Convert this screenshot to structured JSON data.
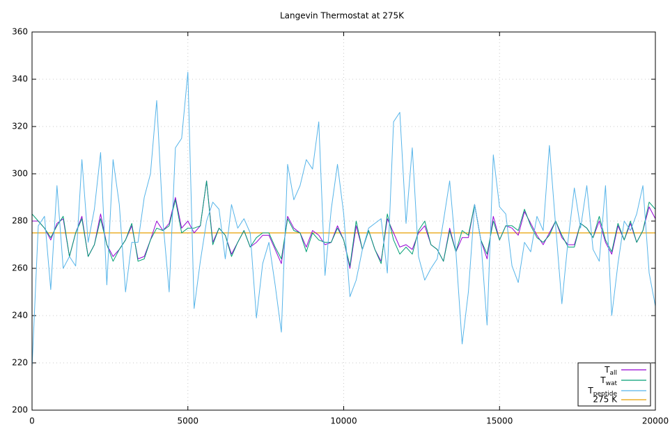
{
  "chart_data": {
    "type": "line",
    "title": "Langevin Thermostat at 275K",
    "x": [
      0,
      200,
      400,
      600,
      800,
      1000,
      1200,
      1400,
      1600,
      1800,
      2000,
      2200,
      2400,
      2600,
      2800,
      3000,
      3200,
      3400,
      3600,
      3800,
      4000,
      4200,
      4400,
      4600,
      4800,
      5000,
      5200,
      5400,
      5600,
      5800,
      6000,
      6200,
      6400,
      6600,
      6800,
      7000,
      7200,
      7400,
      7600,
      7800,
      8000,
      8200,
      8400,
      8600,
      8800,
      9000,
      9200,
      9400,
      9600,
      9800,
      10000,
      10200,
      10400,
      10600,
      10800,
      11000,
      11200,
      11400,
      11600,
      11800,
      12000,
      12200,
      12400,
      12600,
      12800,
      13000,
      13200,
      13400,
      13600,
      13800,
      14000,
      14200,
      14400,
      14600,
      14800,
      15000,
      15200,
      15400,
      15600,
      15800,
      16000,
      16200,
      16400,
      16600,
      16800,
      17000,
      17200,
      17400,
      17600,
      17800,
      18000,
      18200,
      18400,
      18600,
      18800,
      19000,
      19200,
      19400,
      19600,
      19800,
      20000
    ],
    "series": [
      {
        "name": "T",
        "subscript": "all",
        "color": "#9400d3",
        "values": [
          280,
          280,
          277,
          272,
          279,
          281,
          265,
          275,
          282,
          265,
          270,
          283,
          270,
          265,
          268,
          272,
          278,
          264,
          265,
          272,
          280,
          276,
          279,
          290,
          277,
          280,
          275,
          278,
          297,
          271,
          277,
          274,
          266,
          271,
          276,
          269,
          271,
          274,
          274,
          268,
          262,
          282,
          277,
          275,
          269,
          276,
          274,
          270,
          271,
          278,
          272,
          260,
          278,
          268,
          276,
          268,
          263,
          281,
          275,
          269,
          270,
          268,
          275,
          278,
          270,
          268,
          263,
          277,
          267,
          273,
          273,
          287,
          272,
          264,
          282,
          272,
          278,
          277,
          274,
          284,
          279,
          274,
          270,
          275,
          280,
          273,
          270,
          270,
          279,
          277,
          273,
          280,
          271,
          266,
          278,
          272,
          279,
          271,
          276,
          286,
          281
        ]
      },
      {
        "name": "T",
        "subscript": "wat",
        "color": "#009e73",
        "values": [
          283,
          280,
          277,
          273,
          278,
          282,
          265,
          275,
          281,
          265,
          270,
          281,
          270,
          263,
          268,
          272,
          279,
          263,
          264,
          272,
          277,
          276,
          278,
          289,
          275,
          277,
          277,
          278,
          297,
          270,
          277,
          274,
          265,
          271,
          276,
          269,
          273,
          275,
          275,
          269,
          264,
          281,
          276,
          275,
          267,
          275,
          272,
          271,
          271,
          277,
          272,
          261,
          280,
          268,
          276,
          268,
          262,
          283,
          272,
          266,
          269,
          266,
          276,
          280,
          270,
          268,
          263,
          276,
          267,
          276,
          274,
          287,
          272,
          266,
          280,
          272,
          278,
          278,
          276,
          285,
          278,
          273,
          271,
          274,
          280,
          274,
          269,
          269,
          279,
          277,
          273,
          282,
          272,
          267,
          279,
          272,
          280,
          271,
          276,
          288,
          285
        ]
      },
      {
        "name": "T",
        "subscript": "peptide",
        "color": "#56b4e9",
        "values": [
          218,
          278,
          282,
          251,
          295,
          260,
          265,
          261,
          306,
          271,
          285,
          309,
          253,
          306,
          287,
          250,
          271,
          271,
          290,
          300,
          331,
          280,
          250,
          311,
          315,
          343,
          243,
          263,
          280,
          288,
          285,
          264,
          287,
          277,
          281,
          275,
          239,
          262,
          271,
          253,
          233,
          304,
          289,
          295,
          306,
          302,
          322,
          257,
          285,
          304,
          283,
          248,
          255,
          268,
          277,
          279,
          281,
          258,
          322,
          326,
          279,
          311,
          265,
          255,
          260,
          264,
          280,
          297,
          267,
          228,
          250,
          287,
          272,
          236,
          308,
          286,
          283,
          261,
          254,
          271,
          267,
          282,
          276,
          312,
          278,
          245,
          272,
          294,
          277,
          295,
          268,
          263,
          295,
          240,
          262,
          280,
          276,
          283,
          295,
          258,
          244
        ]
      }
    ],
    "reference_line": {
      "name": "275 K",
      "value": 275,
      "color": "#e69f00"
    },
    "xlim": [
      0,
      20000
    ],
    "xticks": [
      0,
      5000,
      10000,
      15000,
      20000
    ],
    "ylim": [
      200,
      360
    ],
    "yticks": [
      200,
      220,
      240,
      260,
      280,
      300,
      320,
      340,
      360
    ],
    "grid": true,
    "legend": "lower right"
  }
}
